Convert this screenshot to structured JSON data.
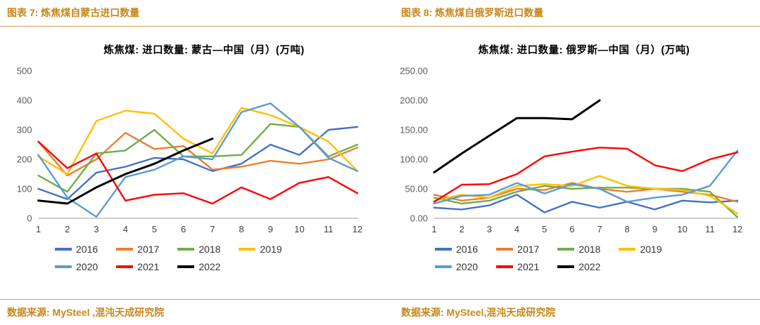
{
  "page": {
    "figure7_caption": "图表 7: 炼焦煤自蒙古进口数量",
    "figure8_caption": "图表 8: 炼焦煤自俄罗斯进口数量",
    "source_left": "数据来源: MySteel ,混沌天成研究院",
    "source_right": "数据来源: MySteel,混沌天成研究院"
  },
  "colors": {
    "accent": "#C8871A",
    "rule": "#C9A05A",
    "axis": "#9B9B9B",
    "tick_label": "#595959"
  },
  "chart_data": [
    {
      "type": "line",
      "title": "炼焦煤: 进口数量: 蒙古—中国（月）(万吨)",
      "x": [
        1,
        2,
        3,
        4,
        5,
        6,
        7,
        8,
        9,
        10,
        11,
        12
      ],
      "xlabel": "",
      "ylabel": "",
      "ylim": [
        0,
        500
      ],
      "yticks": [
        0,
        100,
        200,
        300,
        400,
        500
      ],
      "ytick_labels": [
        "0",
        "100",
        "200",
        "300",
        "400",
        "500"
      ],
      "grid": false,
      "legend_position": "bottom",
      "series": [
        {
          "name": "2016",
          "color": "#4472C4",
          "values": [
            100,
            65,
            155,
            175,
            205,
            200,
            160,
            185,
            250,
            215,
            300,
            310
          ]
        },
        {
          "name": "2017",
          "color": "#ED7D31",
          "values": [
            260,
            145,
            200,
            290,
            235,
            245,
            165,
            175,
            195,
            185,
            200,
            240
          ]
        },
        {
          "name": "2018",
          "color": "#70AD47",
          "values": [
            145,
            90,
            220,
            230,
            300,
            210,
            210,
            215,
            320,
            310,
            210,
            250
          ]
        },
        {
          "name": "2019",
          "color": "#FFC000",
          "values": [
            210,
            150,
            330,
            365,
            355,
            270,
            220,
            375,
            350,
            310,
            260,
            160
          ]
        },
        {
          "name": "2020",
          "color": "#5B9BD5",
          "values": [
            215,
            70,
            5,
            140,
            165,
            210,
            200,
            360,
            390,
            310,
            205,
            160
          ]
        },
        {
          "name": "2021",
          "color": "#FF0000",
          "values": [
            260,
            170,
            220,
            60,
            80,
            85,
            50,
            105,
            65,
            120,
            140,
            85
          ]
        },
        {
          "name": "2022",
          "color": "#000000",
          "values": [
            60,
            50,
            105,
            150,
            185,
            230,
            270
          ]
        }
      ]
    },
    {
      "type": "line",
      "title": "炼焦煤: 进口数量: 俄罗斯—中国（月）(万吨)",
      "x": [
        1,
        2,
        3,
        4,
        5,
        6,
        7,
        8,
        9,
        10,
        11,
        12
      ],
      "xlabel": "",
      "ylabel": "",
      "ylim": [
        0,
        250
      ],
      "yticks": [
        0,
        50,
        100,
        150,
        200,
        250
      ],
      "ytick_labels": [
        "0.00",
        "50.00",
        "100.00",
        "150.00",
        "200.00",
        "250.00"
      ],
      "grid": false,
      "legend_position": "bottom",
      "series": [
        {
          "name": "2016",
          "color": "#4472C4",
          "values": [
            18,
            15,
            22,
            40,
            10,
            28,
            18,
            28,
            15,
            30,
            27,
            30
          ]
        },
        {
          "name": "2017",
          "color": "#ED7D31",
          "values": [
            40,
            30,
            35,
            50,
            48,
            60,
            50,
            45,
            50,
            45,
            40,
            28
          ]
        },
        {
          "name": "2018",
          "color": "#70AD47",
          "values": [
            35,
            25,
            30,
            45,
            55,
            50,
            52,
            52,
            50,
            50,
            45,
            2
          ]
        },
        {
          "name": "2019",
          "color": "#FFC000",
          "values": [
            30,
            40,
            35,
            55,
            58,
            55,
            72,
            55,
            50,
            48,
            38,
            8
          ]
        },
        {
          "name": "2020",
          "color": "#5B9BD5",
          "values": [
            25,
            38,
            40,
            60,
            42,
            58,
            50,
            28,
            35,
            40,
            55,
            115
          ]
        },
        {
          "name": "2021",
          "color": "#FF0000",
          "values": [
            28,
            57,
            58,
            75,
            105,
            113,
            120,
            118,
            90,
            80,
            100,
            112
          ]
        },
        {
          "name": "2022",
          "color": "#000000",
          "values": [
            78,
            110,
            140,
            170,
            170,
            168,
            200
          ]
        }
      ]
    }
  ]
}
